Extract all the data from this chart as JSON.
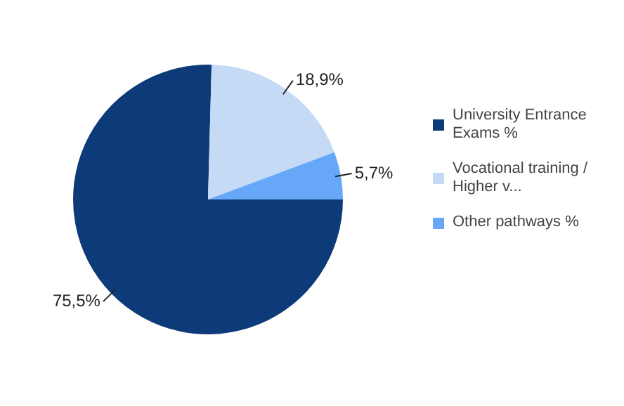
{
  "chart_data": {
    "type": "pie",
    "categories": [
      "University Entrance Exams %",
      "Vocational training / Higher v...",
      "Other pathways %"
    ],
    "values": [
      75.5,
      18.9,
      5.7
    ],
    "colors": [
      "#0d3a78",
      "#c5daf5",
      "#66a8f7"
    ],
    "value_labels": [
      "75,5%",
      "18,9%",
      "5,7%"
    ],
    "legend": "right"
  }
}
